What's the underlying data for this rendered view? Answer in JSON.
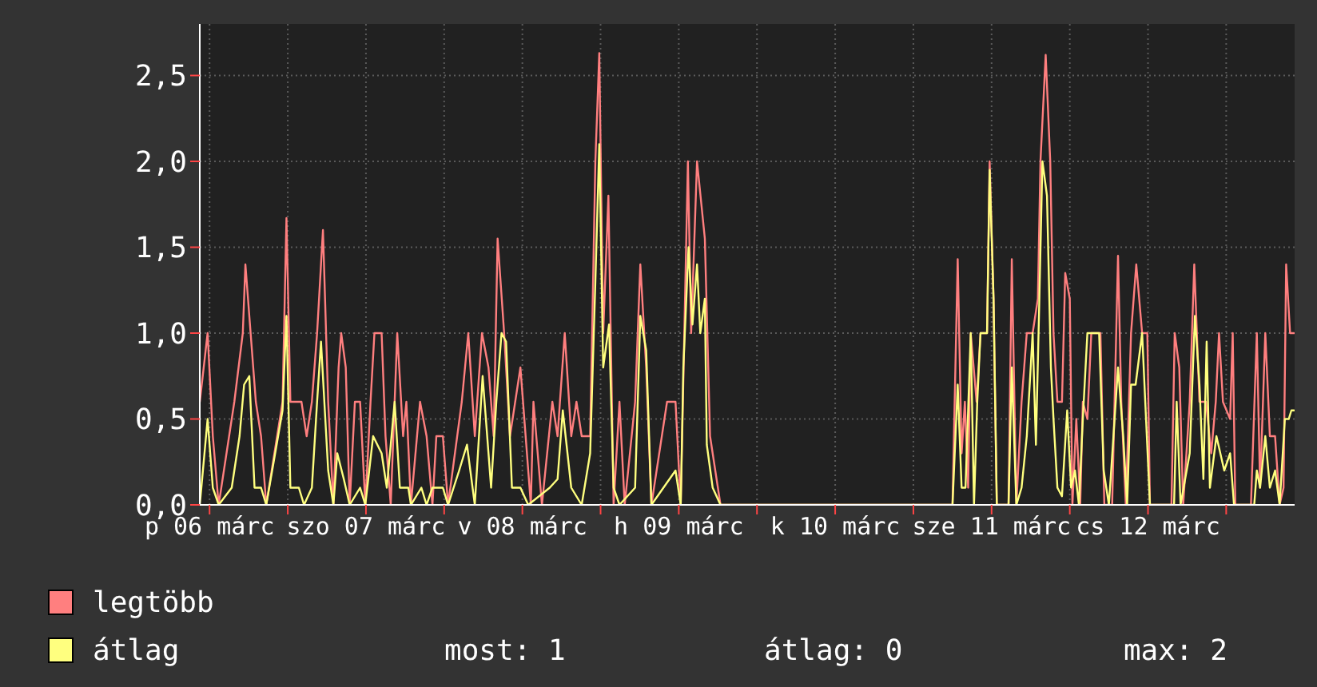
{
  "chart_data": {
    "type": "line",
    "xlim": [
      "--03-06T10:30",
      "--03-13T10:30"
    ],
    "xticks": [
      {
        "value": "--03-06T12:00",
        "label": "p 06 márc"
      },
      {
        "value": "--03-07T00:00",
        "label": null
      },
      {
        "value": "--03-07T12:00",
        "label": "szo 07 márc"
      },
      {
        "value": "--03-08T00:00",
        "label": null
      },
      {
        "value": "--03-08T12:00",
        "label": "v 08 márc"
      },
      {
        "value": "--03-09T00:00",
        "label": null
      },
      {
        "value": "--03-09T12:00",
        "label": "h 09 márc"
      },
      {
        "value": "--03-10T00:00",
        "label": null
      },
      {
        "value": "--03-10T12:00",
        "label": "k 10 márc"
      },
      {
        "value": "--03-11T00:00",
        "label": null
      },
      {
        "value": "--03-11T12:00",
        "label": "sze 11 márc"
      },
      {
        "value": "--03-12T00:00",
        "label": null
      },
      {
        "value": "--03-12T12:00",
        "label": "cs 12 márc"
      },
      {
        "value": "--03-13T00:00",
        "label": null
      }
    ],
    "ylim": [
      0,
      2.8
    ],
    "yticks": [
      {
        "value": 0,
        "label": "0,0"
      },
      {
        "value": 0.5,
        "label": "0,5"
      },
      {
        "value": 1,
        "label": "1,0"
      },
      {
        "value": 1.5,
        "label": "1,5"
      },
      {
        "value": 2,
        "label": "2,0"
      },
      {
        "value": 2.5,
        "label": "2,5"
      }
    ],
    "grid": true,
    "legend": "bottom",
    "marker": "none",
    "line_style": "solid",
    "annotations": [
      "most: 1",
      "átlag: 0",
      "max: 2"
    ],
    "series": [
      {
        "name": "legtöbb",
        "color": "#ff7f7f",
        "x": [
          "--03-06T10:30",
          "--03-06T11:42",
          "--03-06T12:30",
          "--03-06T13:24",
          "--03-06T15:48",
          "--03-06T17:06",
          "--03-06T17:30",
          "--03-06T18:18",
          "--03-06T19:06",
          "--03-06T19:54",
          "--03-06T20:42",
          "--03-06T23:12",
          "--03-06T23:48",
          "--03-07T00:24",
          "--03-07T02:06",
          "--03-07T02:54",
          "--03-07T03:42",
          "--03-07T04:30",
          "--03-07T05:24",
          "--03-07T06:12",
          "--03-07T07:00",
          "--03-07T07:48",
          "--03-07T08:12",
          "--03-07T08:54",
          "--03-07T09:30",
          "--03-07T10:18",
          "--03-07T11:06",
          "--03-07T11:54",
          "--03-07T12:42",
          "--03-07T13:18",
          "--03-07T14:24",
          "--03-07T15:00",
          "--03-07T15:48",
          "--03-07T16:48",
          "--03-07T17:42",
          "--03-07T18:12",
          "--03-07T18:54",
          "--03-07T20:18",
          "--03-07T21:18",
          "--03-07T22:12",
          "--03-07T22:48",
          "--03-07T23:48",
          "--03-08T00:36",
          "--03-08T02:42",
          "--03-08T03:42",
          "--03-08T04:42",
          "--03-08T05:48",
          "--03-08T06:48",
          "--03-08T07:36",
          "--03-08T08:12",
          "--03-08T09:12",
          "--03-08T10:06",
          "--03-08T11:42",
          "--03-08T12:30",
          "--03-08T13:18",
          "--03-08T13:42",
          "--03-08T15:00",
          "--03-08T16:36",
          "--03-08T17:24",
          "--03-08T18:30",
          "--03-08T19:30",
          "--03-08T20:18",
          "--03-08T21:06",
          "--03-08T22:24",
          "--03-08T23:12",
          "--03-08T23:48",
          "--03-09T00:24",
          "--03-09T01:12",
          "--03-09T02:00",
          "--03-09T02:54",
          "--03-09T03:42",
          "--03-09T05:18",
          "--03-09T06:06",
          "--03-09T07:00",
          "--03-09T07:48",
          "--03-09T10:12",
          "--03-09T11:30",
          "--03-09T12:18",
          "--03-09T13:24",
          "--03-09T13:54",
          "--03-09T14:48",
          "--03-09T16:00",
          "--03-09T16:48",
          "--03-09T17:36",
          "--03-09T18:24",
          "--03-11T06:00",
          "--03-11T06:48",
          "--03-11T07:24",
          "--03-11T07:54",
          "--03-11T08:24",
          "--03-11T08:48",
          "--03-11T09:42",
          "--03-11T10:18",
          "--03-11T11:18",
          "--03-11T11:42",
          "--03-11T12:18",
          "--03-11T12:48",
          "--03-11T14:36",
          "--03-11T15:06",
          "--03-11T15:48",
          "--03-11T16:36",
          "--03-11T17:24",
          "--03-11T18:18",
          "--03-11T19:06",
          "--03-11T19:30",
          "--03-11T20:18",
          "--03-11T21:00",
          "--03-11T21:30",
          "--03-11T22:06",
          "--03-11T22:48",
          "--03-11T23:18",
          "--03-12T00:00",
          "--03-12T00:24",
          "--03-12T01:00",
          "--03-12T01:36",
          "--03-12T02:00",
          "--03-12T02:42",
          "--03-12T03:18",
          "--03-12T04:42",
          "--03-12T05:18",
          "--03-12T06:30",
          "--03-12T07:24",
          "--03-12T07:54",
          "--03-12T08:36",
          "--03-12T09:24",
          "--03-12T10:12",
          "--03-12T11:06",
          "--03-12T11:54",
          "--03-12T12:18",
          "--03-12T15:36",
          "--03-12T16:06",
          "--03-12T16:48",
          "--03-12T17:24",
          "--03-12T18:24",
          "--03-12T19:06",
          "--03-12T19:54",
          "--03-12T20:54",
          "--03-12T21:42",
          "--03-12T22:24",
          "--03-12T22:54",
          "--03-12T23:30",
          "--03-13T00:36",
          "--03-13T01:00",
          "--03-13T01:24",
          "--03-13T03:48",
          "--03-13T04:42",
          "--03-13T05:12",
          "--03-13T06:00",
          "--03-13T06:42",
          "--03-13T07:30",
          "--03-13T08:12",
          "--03-13T08:48",
          "--03-13T09:12",
          "--03-13T09:48",
          "--03-13T10:24"
        ],
        "values": [
          0.6,
          1.0,
          0.4,
          0,
          0.6,
          1.0,
          1.4,
          1.0,
          0.6,
          0.4,
          0,
          0.6,
          1.67,
          0.6,
          0.6,
          0.4,
          0.6,
          1.0,
          1.6,
          0.6,
          0,
          0.8,
          1.0,
          0.8,
          0,
          0.6,
          0.6,
          0,
          0.6,
          1.0,
          1.0,
          0.4,
          0,
          1.0,
          0.4,
          0.6,
          0,
          0.6,
          0.4,
          0,
          0.4,
          0.4,
          0,
          0.6,
          1.0,
          0.4,
          1.0,
          0.8,
          0.4,
          1.55,
          1.0,
          0.4,
          0.8,
          0.4,
          0,
          0.6,
          0,
          0.6,
          0.4,
          1.0,
          0.4,
          0.6,
          0.4,
          0.4,
          2.0,
          2.63,
          1.0,
          1.8,
          0,
          0.6,
          0,
          0.6,
          1.4,
          0.8,
          0,
          0.6,
          0.6,
          0,
          2.0,
          1.0,
          2.0,
          1.55,
          0.4,
          0.2,
          0,
          0,
          1.43,
          0.3,
          0.6,
          0.1,
          1.0,
          0.6,
          1.0,
          1.0,
          2.0,
          1.2,
          0,
          0,
          1.43,
          0,
          0.6,
          1.0,
          1.0,
          1.2,
          2.0,
          2.62,
          2.0,
          1.0,
          0.6,
          0.6,
          1.35,
          1.2,
          0,
          0.5,
          0,
          0.6,
          0.5,
          1.0,
          1.0,
          0,
          0,
          1.45,
          0.6,
          0,
          1.0,
          1.4,
          1.0,
          1.0,
          0,
          0,
          1.0,
          0.8,
          0,
          0.6,
          1.4,
          0.6,
          0.6,
          0.3,
          0.6,
          1.0,
          0.6,
          0.5,
          1.0,
          0,
          0,
          1.0,
          0.1,
          1.0,
          0.4,
          0.4,
          0,
          0.1,
          1.4,
          1.0,
          1.0
        ]
      },
      {
        "name": "átlag",
        "color": "#ffff7f",
        "x": [
          "--03-06T10:30",
          "--03-06T11:42",
          "--03-06T12:30",
          "--03-06T13:24",
          "--03-06T15:24",
          "--03-06T16:36",
          "--03-06T17:18",
          "--03-06T18:06",
          "--03-06T18:54",
          "--03-06T19:54",
          "--03-06T20:42",
          "--03-06T23:12",
          "--03-06T23:48",
          "--03-07T00:24",
          "--03-07T01:42",
          "--03-07T02:30",
          "--03-07T03:42",
          "--03-07T04:30",
          "--03-07T05:06",
          "--03-07T06:12",
          "--03-07T07:00",
          "--03-07T07:36",
          "--03-07T08:36",
          "--03-07T09:30",
          "--03-07T11:06",
          "--03-07T11:54",
          "--03-07T13:06",
          "--03-07T14:24",
          "--03-07T15:12",
          "--03-07T16:24",
          "--03-07T17:12",
          "--03-07T18:30",
          "--03-07T18:54",
          "--03-07T20:30",
          "--03-07T21:18",
          "--03-07T22:12",
          "--03-07T23:48",
          "--03-08T00:36",
          "--03-08T02:18",
          "--03-08T03:30",
          "--03-08T04:42",
          "--03-08T05:54",
          "--03-08T07:12",
          "--03-08T08:00",
          "--03-08T08:48",
          "--03-08T09:30",
          "--03-08T10:24",
          "--03-08T11:42",
          "--03-08T12:54",
          "--03-08T16:12",
          "--03-08T17:24",
          "--03-08T18:12",
          "--03-08T19:30",
          "--03-08T21:06",
          "--03-08T22:24",
          "--03-08T23:12",
          "--03-08T23:48",
          "--03-09T00:24",
          "--03-09T01:18",
          "--03-09T02:00",
          "--03-09T02:54",
          "--03-09T05:18",
          "--03-09T06:06",
          "--03-09T07:00",
          "--03-09T07:48",
          "--03-09T11:30",
          "--03-09T12:18",
          "--03-09T12:42",
          "--03-09T13:30",
          "--03-09T14:06",
          "--03-09T14:48",
          "--03-09T15:18",
          "--03-09T16:00",
          "--03-09T16:18",
          "--03-09T17:12",
          "--03-09T18:24",
          "--03-11T06:00",
          "--03-11T06:48",
          "--03-11T07:24",
          "--03-11T08:00",
          "--03-11T08:48",
          "--03-11T09:18",
          "--03-11T09:48",
          "--03-11T10:18",
          "--03-11T11:18",
          "--03-11T11:42",
          "--03-11T12:18",
          "--03-11T12:48",
          "--03-11T14:36",
          "--03-11T15:06",
          "--03-11T15:48",
          "--03-11T16:36",
          "--03-11T17:24",
          "--03-11T18:18",
          "--03-11T18:48",
          "--03-11T19:18",
          "--03-11T19:48",
          "--03-11T20:30",
          "--03-11T21:06",
          "--03-11T21:30",
          "--03-11T22:06",
          "--03-11T22:48",
          "--03-11T23:36",
          "--03-12T00:12",
          "--03-12T00:48",
          "--03-12T01:24",
          "--03-12T02:00",
          "--03-12T02:42",
          "--03-12T04:30",
          "--03-12T05:12",
          "--03-12T06:00",
          "--03-12T07:24",
          "--03-12T08:12",
          "--03-12T08:48",
          "--03-12T09:24",
          "--03-12T10:06",
          "--03-12T11:06",
          "--03-12T11:42",
          "--03-12T12:18",
          "--03-12T16:00",
          "--03-12T16:24",
          "--03-12T17:00",
          "--03-12T18:24",
          "--03-12T19:12",
          "--03-12T19:54",
          "--03-12T20:30",
          "--03-12T21:00",
          "--03-12T21:30",
          "--03-12T22:30",
          "--03-12T23:42",
          "--03-13T00:36",
          "--03-13T01:12",
          "--03-13T04:18",
          "--03-13T04:42",
          "--03-13T05:12",
          "--03-13T06:00",
          "--03-13T06:42",
          "--03-13T07:30",
          "--03-13T08:12",
          "--03-13T09:00",
          "--03-13T09:36",
          "--03-13T10:00",
          "--03-13T10:24"
        ],
        "values": [
          0,
          0.5,
          0.1,
          0,
          0.1,
          0.4,
          0.7,
          0.75,
          0.1,
          0.1,
          0,
          0.55,
          1.1,
          0.1,
          0.1,
          0,
          0.1,
          0.6,
          0.95,
          0.2,
          0,
          0.3,
          0.15,
          0,
          0.1,
          0,
          0.4,
          0.3,
          0.1,
          0.6,
          0.1,
          0.1,
          0,
          0.1,
          0,
          0.1,
          0.1,
          0,
          0.2,
          0.35,
          0,
          0.75,
          0.1,
          0.6,
          1.0,
          0.95,
          0.1,
          0.1,
          0,
          0.1,
          0.15,
          0.55,
          0.1,
          0,
          0.3,
          1.3,
          2.1,
          0.8,
          1.05,
          0.1,
          0,
          0.1,
          1.1,
          0.9,
          0,
          0.2,
          0,
          0.8,
          1.5,
          1.05,
          1.4,
          1.0,
          1.2,
          0.35,
          0.1,
          0,
          0,
          0.7,
          0.1,
          0.1,
          1.0,
          0,
          0.6,
          1.0,
          1.0,
          1.95,
          1.2,
          0,
          0,
          0.8,
          0,
          0.1,
          0.4,
          1.0,
          0.35,
          1.15,
          2.0,
          1.8,
          0.8,
          0.5,
          0.1,
          0.05,
          0.55,
          0.1,
          0.2,
          0,
          0.5,
          1.0,
          1.0,
          0.2,
          0,
          0.8,
          0.4,
          0,
          0.7,
          0.7,
          1.0,
          0.5,
          0,
          0,
          0.6,
          0,
          0.3,
          1.1,
          0.7,
          0.15,
          0.95,
          0.1,
          0.4,
          0.2,
          0.3,
          0,
          0,
          0.2,
          0.1,
          0.4,
          0.1,
          0.2,
          0,
          0.5,
          0.5,
          0.55,
          0.55
        ]
      }
    ]
  }
}
